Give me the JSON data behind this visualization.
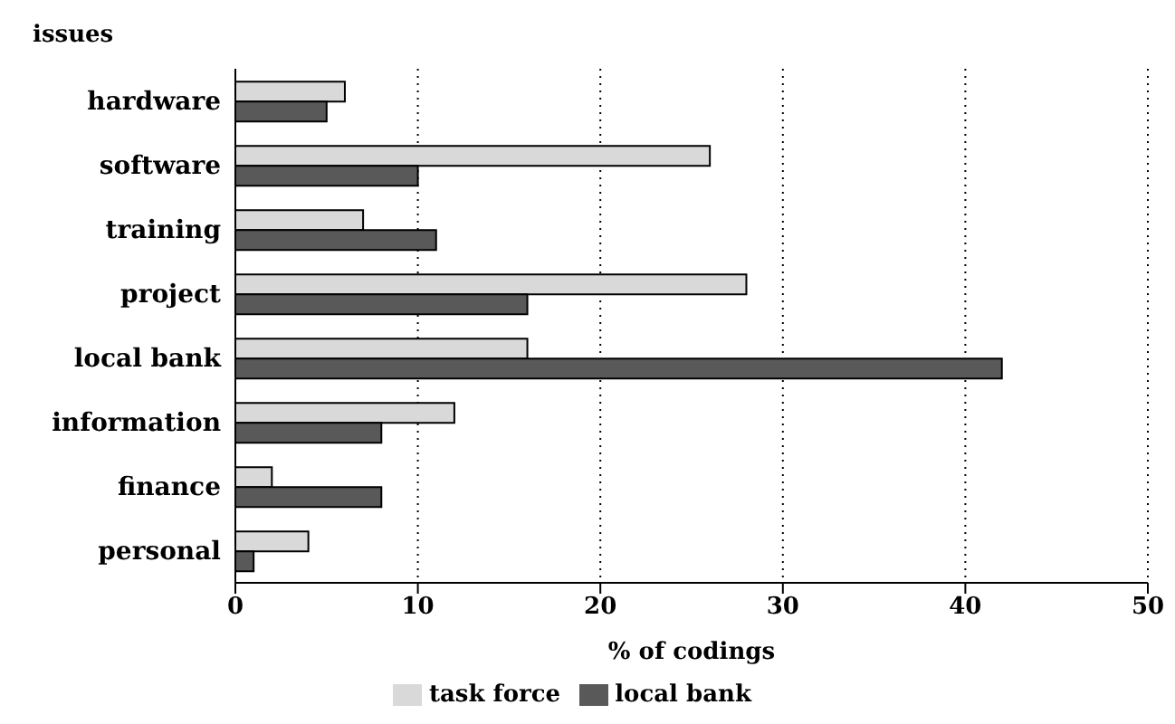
{
  "chart_data": {
    "type": "bar",
    "orientation": "horizontal",
    "ylabel": "issues",
    "xlabel": "% of codings",
    "categories": [
      "hardware",
      "software",
      "training",
      "project",
      "local bank",
      "information",
      "finance",
      "personal"
    ],
    "series": [
      {
        "name": "task force",
        "color": "#d9d9d9",
        "values": [
          6,
          26,
          7,
          28,
          16,
          12,
          2,
          4
        ]
      },
      {
        "name": "local bank",
        "color": "#595959",
        "values": [
          5,
          10,
          11,
          16,
          42,
          8,
          8,
          1
        ]
      }
    ],
    "xlim": [
      0,
      50
    ],
    "xticks": [
      0,
      10,
      20,
      30,
      40,
      50
    ],
    "grid": "x",
    "legend": "bottom"
  }
}
